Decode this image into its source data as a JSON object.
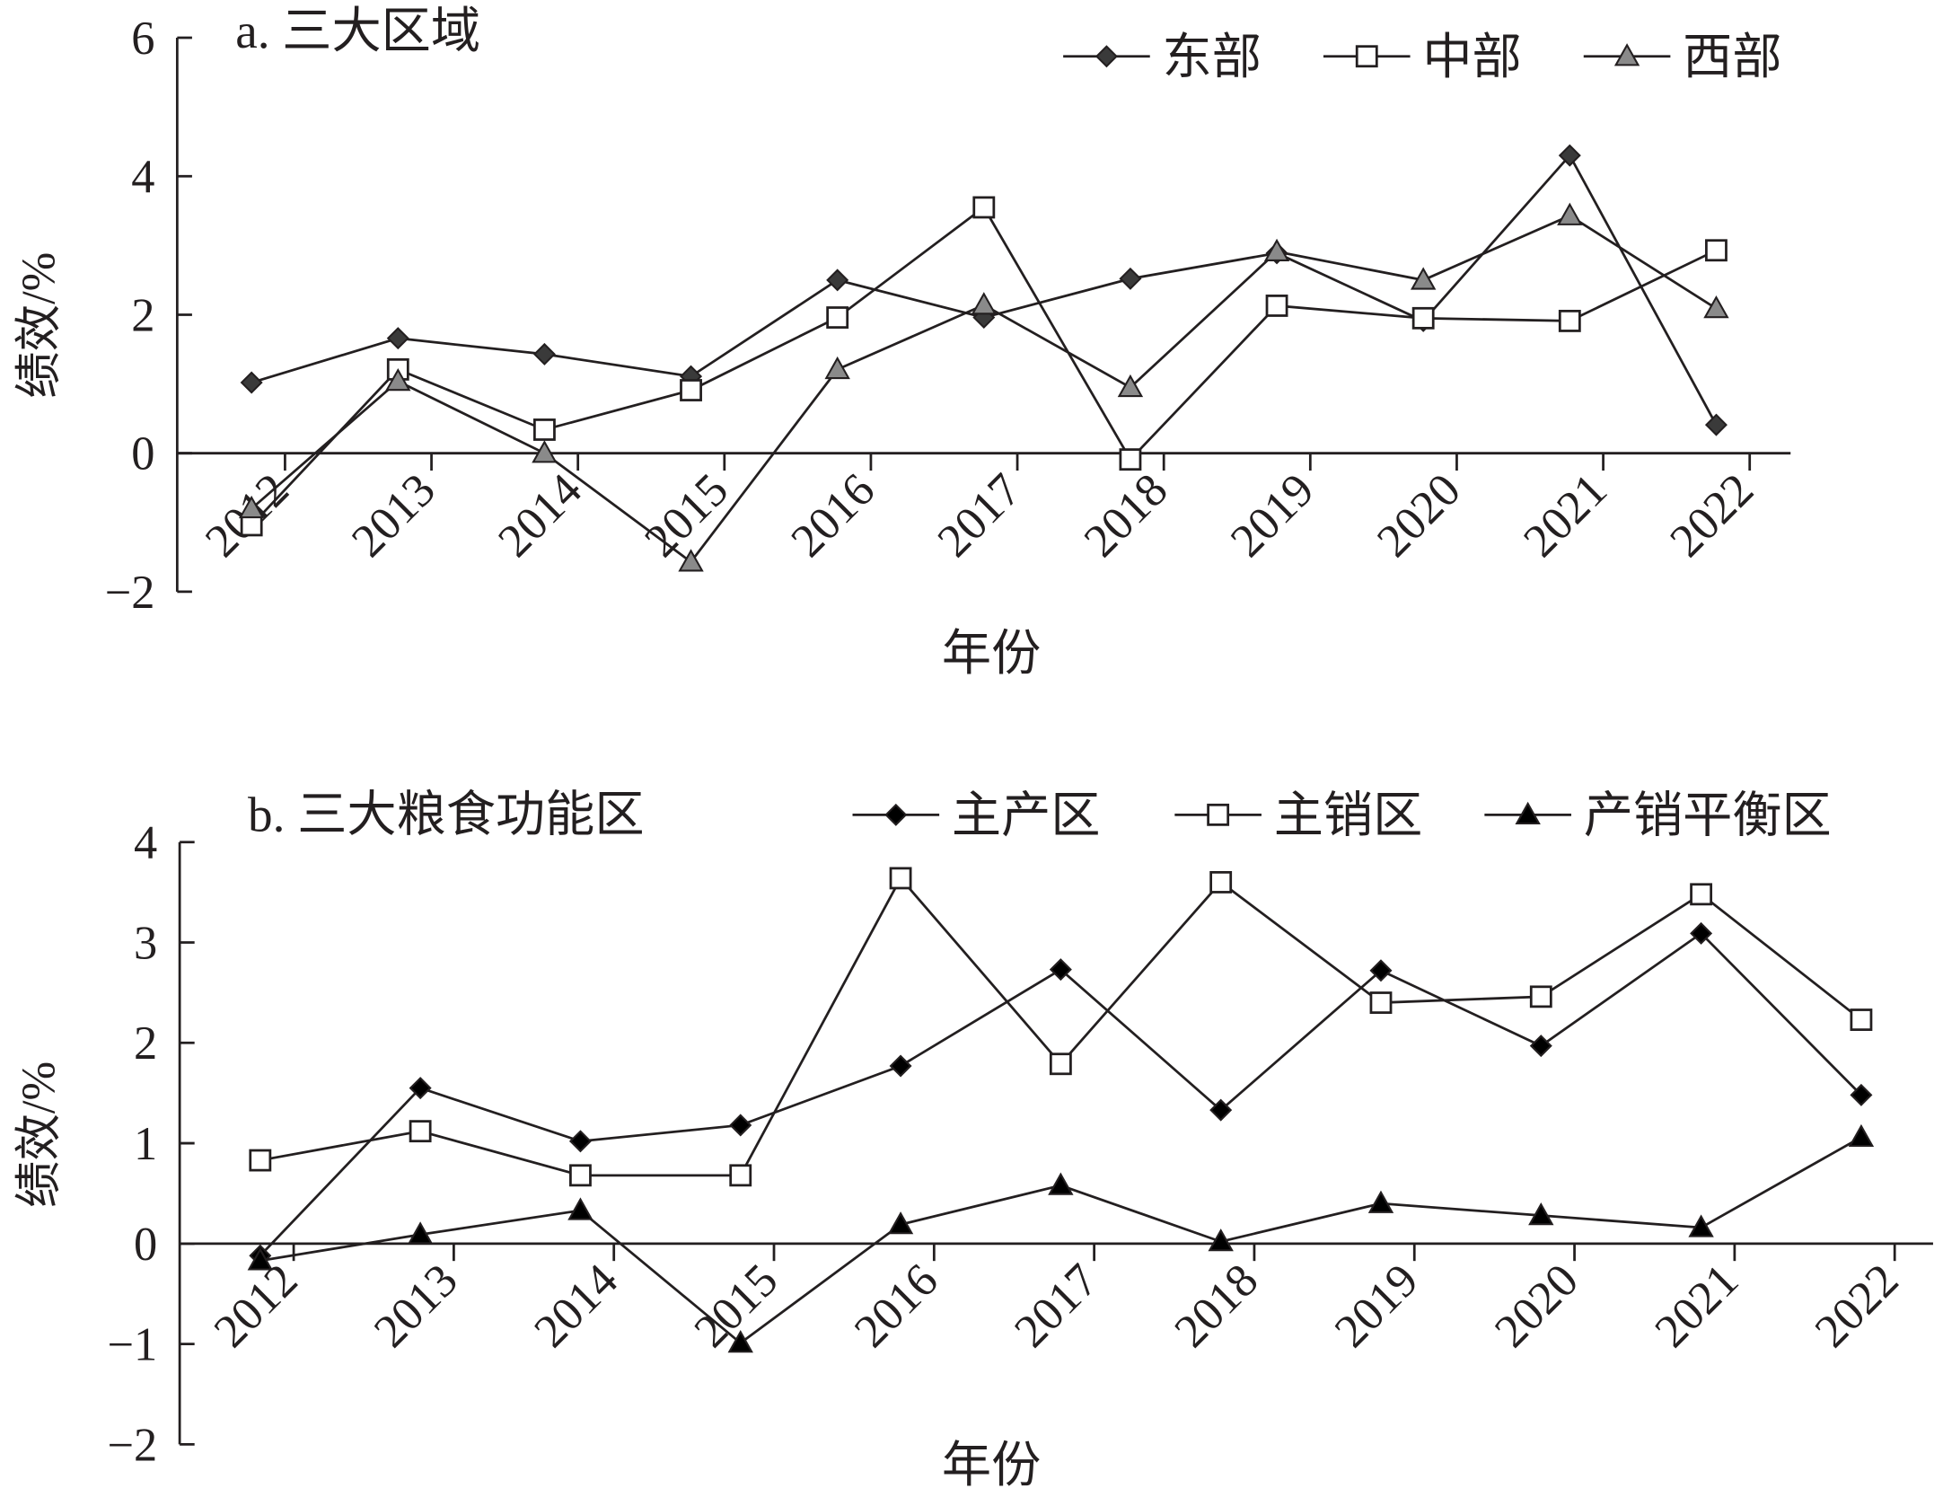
{
  "chart_data": [
    {
      "type": "line",
      "title": "a. 三大区域",
      "xlabel": "年份",
      "ylabel": "绩效/%",
      "ylim": [
        -2,
        6
      ],
      "yticks": [
        -2,
        0,
        2,
        4,
        6
      ],
      "categories": [
        "2012",
        "2013",
        "2014",
        "2015",
        "2016",
        "2017",
        "2018",
        "2019",
        "2020",
        "2021",
        "2022"
      ],
      "legend_position": "top-right",
      "series": [
        {
          "name": "东部",
          "marker": "diamond",
          "color": "#3a3a3a",
          "values": [
            1.02,
            1.66,
            1.43,
            1.11,
            2.5,
            1.96,
            2.52,
            2.89,
            1.91,
            4.3,
            0.41
          ]
        },
        {
          "name": "中部",
          "marker": "square-open",
          "color": "#231f20",
          "values": [
            -1.04,
            1.21,
            0.34,
            0.91,
            1.96,
            3.55,
            -0.09,
            2.13,
            1.95,
            1.91,
            2.93
          ]
        },
        {
          "name": "西部",
          "marker": "triangle",
          "color": "#8a8a8a",
          "values": [
            -0.8,
            1.04,
            0.0,
            -1.57,
            1.21,
            2.14,
            0.95,
            2.91,
            2.5,
            3.43,
            2.09
          ]
        }
      ]
    },
    {
      "type": "line",
      "title": "b. 三大粮食功能区",
      "xlabel": "年份",
      "ylabel": "绩效/%",
      "ylim": [
        -2,
        4
      ],
      "yticks": [
        -2,
        -1,
        0,
        1,
        2,
        3,
        4
      ],
      "categories": [
        "2012",
        "2013",
        "2014",
        "2015",
        "2016",
        "2017",
        "2018",
        "2019",
        "2020",
        "2021",
        "2022"
      ],
      "legend_position": "top-right",
      "series": [
        {
          "name": "主产区",
          "marker": "diamond",
          "color": "#000000",
          "values": [
            -0.12,
            1.55,
            1.02,
            1.18,
            1.77,
            2.73,
            1.33,
            2.72,
            1.97,
            3.09,
            1.48
          ]
        },
        {
          "name": "主销区",
          "marker": "square-open",
          "color": "#231f20",
          "values": [
            0.83,
            1.12,
            0.68,
            0.68,
            3.64,
            1.79,
            3.6,
            2.4,
            2.46,
            3.48,
            2.23
          ]
        },
        {
          "name": "产销平衡区",
          "marker": "triangle",
          "color": "#000000",
          "values": [
            -0.17,
            0.09,
            0.33,
            -0.99,
            0.19,
            0.58,
            0.02,
            0.4,
            0.28,
            0.16,
            1.06
          ]
        }
      ]
    }
  ]
}
